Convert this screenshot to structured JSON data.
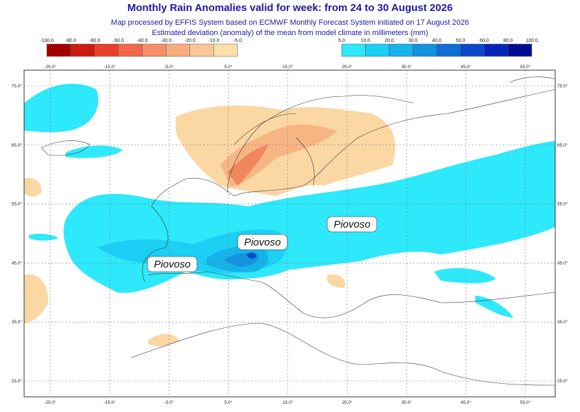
{
  "header": {
    "title": "Monthly Rain Anomalies valid for week: from 24 to 30 August 2026",
    "subtitle_1": "Map processed by EFFIS System based on ECMWF Monthly Forecast System initiated on 17 August 2026",
    "subtitle_2": "Estimated deviation (anomaly) of the mean from model climate in millimeters (mm)"
  },
  "legend_negative": {
    "labels": [
      "-100.0",
      "-80.0",
      "-60.0",
      "-50.0",
      "-40.0",
      "-30.0",
      "-20.0",
      "-10.0",
      "-5.0"
    ],
    "colors": [
      "#a30000",
      "#cc1a12",
      "#e8402c",
      "#f2684c",
      "#f68e68",
      "#f8ac80",
      "#fbc796",
      "#fddfaa"
    ]
  },
  "legend_positive": {
    "labels": [
      "5.0",
      "10.0",
      "20.0",
      "30.0",
      "40.0",
      "50.0",
      "60.0",
      "80.0",
      "100.0"
    ],
    "colors": [
      "#2ee8fb",
      "#1ccff4",
      "#16b3ea",
      "#1393e0",
      "#0e6ed6",
      "#0a49ca",
      "#0526b6",
      "#000c94"
    ]
  },
  "map": {
    "lon_labels": [
      "-25.0°",
      "-15.0°",
      "-5.0°",
      "5.0°",
      "15.0°",
      "25.0°",
      "35.0°",
      "45.0°",
      "55.0°"
    ],
    "lat_labels": [
      "75.0°",
      "65.0°",
      "55.0°",
      "45.0°",
      "35.0°",
      "25.0°"
    ],
    "annotations": [
      "Piovoso",
      "Piovoso",
      "Piovoso"
    ]
  }
}
